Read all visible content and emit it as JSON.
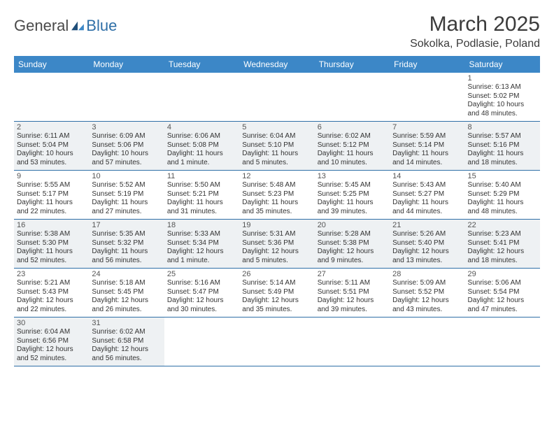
{
  "brand": {
    "part1": "General",
    "part2": "Blue"
  },
  "title": "March 2025",
  "location": "Sokolka, Podlasie, Poland",
  "colors": {
    "header_bg": "#3c87c7",
    "border": "#2f6fa7",
    "shade_bg": "#eef1f3",
    "text": "#333333",
    "page_bg": "#ffffff"
  },
  "day_labels": [
    "Sunday",
    "Monday",
    "Tuesday",
    "Wednesday",
    "Thursday",
    "Friday",
    "Saturday"
  ],
  "weeks": [
    [
      {
        "num": "",
        "lines": []
      },
      {
        "num": "",
        "lines": []
      },
      {
        "num": "",
        "lines": []
      },
      {
        "num": "",
        "lines": []
      },
      {
        "num": "",
        "lines": []
      },
      {
        "num": "",
        "lines": []
      },
      {
        "num": "1",
        "lines": [
          "Sunrise: 6:13 AM",
          "Sunset: 5:02 PM",
          "Daylight: 10 hours",
          "and 48 minutes."
        ]
      }
    ],
    [
      {
        "num": "2",
        "lines": [
          "Sunrise: 6:11 AM",
          "Sunset: 5:04 PM",
          "Daylight: 10 hours",
          "and 53 minutes."
        ]
      },
      {
        "num": "3",
        "lines": [
          "Sunrise: 6:09 AM",
          "Sunset: 5:06 PM",
          "Daylight: 10 hours",
          "and 57 minutes."
        ]
      },
      {
        "num": "4",
        "lines": [
          "Sunrise: 6:06 AM",
          "Sunset: 5:08 PM",
          "Daylight: 11 hours",
          "and 1 minute."
        ]
      },
      {
        "num": "5",
        "lines": [
          "Sunrise: 6:04 AM",
          "Sunset: 5:10 PM",
          "Daylight: 11 hours",
          "and 5 minutes."
        ]
      },
      {
        "num": "6",
        "lines": [
          "Sunrise: 6:02 AM",
          "Sunset: 5:12 PM",
          "Daylight: 11 hours",
          "and 10 minutes."
        ]
      },
      {
        "num": "7",
        "lines": [
          "Sunrise: 5:59 AM",
          "Sunset: 5:14 PM",
          "Daylight: 11 hours",
          "and 14 minutes."
        ]
      },
      {
        "num": "8",
        "lines": [
          "Sunrise: 5:57 AM",
          "Sunset: 5:16 PM",
          "Daylight: 11 hours",
          "and 18 minutes."
        ]
      }
    ],
    [
      {
        "num": "9",
        "lines": [
          "Sunrise: 5:55 AM",
          "Sunset: 5:17 PM",
          "Daylight: 11 hours",
          "and 22 minutes."
        ]
      },
      {
        "num": "10",
        "lines": [
          "Sunrise: 5:52 AM",
          "Sunset: 5:19 PM",
          "Daylight: 11 hours",
          "and 27 minutes."
        ]
      },
      {
        "num": "11",
        "lines": [
          "Sunrise: 5:50 AM",
          "Sunset: 5:21 PM",
          "Daylight: 11 hours",
          "and 31 minutes."
        ]
      },
      {
        "num": "12",
        "lines": [
          "Sunrise: 5:48 AM",
          "Sunset: 5:23 PM",
          "Daylight: 11 hours",
          "and 35 minutes."
        ]
      },
      {
        "num": "13",
        "lines": [
          "Sunrise: 5:45 AM",
          "Sunset: 5:25 PM",
          "Daylight: 11 hours",
          "and 39 minutes."
        ]
      },
      {
        "num": "14",
        "lines": [
          "Sunrise: 5:43 AM",
          "Sunset: 5:27 PM",
          "Daylight: 11 hours",
          "and 44 minutes."
        ]
      },
      {
        "num": "15",
        "lines": [
          "Sunrise: 5:40 AM",
          "Sunset: 5:29 PM",
          "Daylight: 11 hours",
          "and 48 minutes."
        ]
      }
    ],
    [
      {
        "num": "16",
        "lines": [
          "Sunrise: 5:38 AM",
          "Sunset: 5:30 PM",
          "Daylight: 11 hours",
          "and 52 minutes."
        ]
      },
      {
        "num": "17",
        "lines": [
          "Sunrise: 5:35 AM",
          "Sunset: 5:32 PM",
          "Daylight: 11 hours",
          "and 56 minutes."
        ]
      },
      {
        "num": "18",
        "lines": [
          "Sunrise: 5:33 AM",
          "Sunset: 5:34 PM",
          "Daylight: 12 hours",
          "and 1 minute."
        ]
      },
      {
        "num": "19",
        "lines": [
          "Sunrise: 5:31 AM",
          "Sunset: 5:36 PM",
          "Daylight: 12 hours",
          "and 5 minutes."
        ]
      },
      {
        "num": "20",
        "lines": [
          "Sunrise: 5:28 AM",
          "Sunset: 5:38 PM",
          "Daylight: 12 hours",
          "and 9 minutes."
        ]
      },
      {
        "num": "21",
        "lines": [
          "Sunrise: 5:26 AM",
          "Sunset: 5:40 PM",
          "Daylight: 12 hours",
          "and 13 minutes."
        ]
      },
      {
        "num": "22",
        "lines": [
          "Sunrise: 5:23 AM",
          "Sunset: 5:41 PM",
          "Daylight: 12 hours",
          "and 18 minutes."
        ]
      }
    ],
    [
      {
        "num": "23",
        "lines": [
          "Sunrise: 5:21 AM",
          "Sunset: 5:43 PM",
          "Daylight: 12 hours",
          "and 22 minutes."
        ]
      },
      {
        "num": "24",
        "lines": [
          "Sunrise: 5:18 AM",
          "Sunset: 5:45 PM",
          "Daylight: 12 hours",
          "and 26 minutes."
        ]
      },
      {
        "num": "25",
        "lines": [
          "Sunrise: 5:16 AM",
          "Sunset: 5:47 PM",
          "Daylight: 12 hours",
          "and 30 minutes."
        ]
      },
      {
        "num": "26",
        "lines": [
          "Sunrise: 5:14 AM",
          "Sunset: 5:49 PM",
          "Daylight: 12 hours",
          "and 35 minutes."
        ]
      },
      {
        "num": "27",
        "lines": [
          "Sunrise: 5:11 AM",
          "Sunset: 5:51 PM",
          "Daylight: 12 hours",
          "and 39 minutes."
        ]
      },
      {
        "num": "28",
        "lines": [
          "Sunrise: 5:09 AM",
          "Sunset: 5:52 PM",
          "Daylight: 12 hours",
          "and 43 minutes."
        ]
      },
      {
        "num": "29",
        "lines": [
          "Sunrise: 5:06 AM",
          "Sunset: 5:54 PM",
          "Daylight: 12 hours",
          "and 47 minutes."
        ]
      }
    ],
    [
      {
        "num": "30",
        "lines": [
          "Sunrise: 6:04 AM",
          "Sunset: 6:56 PM",
          "Daylight: 12 hours",
          "and 52 minutes."
        ]
      },
      {
        "num": "31",
        "lines": [
          "Sunrise: 6:02 AM",
          "Sunset: 6:58 PM",
          "Daylight: 12 hours",
          "and 56 minutes."
        ]
      },
      {
        "num": "",
        "lines": []
      },
      {
        "num": "",
        "lines": []
      },
      {
        "num": "",
        "lines": []
      },
      {
        "num": "",
        "lines": []
      },
      {
        "num": "",
        "lines": []
      }
    ]
  ]
}
